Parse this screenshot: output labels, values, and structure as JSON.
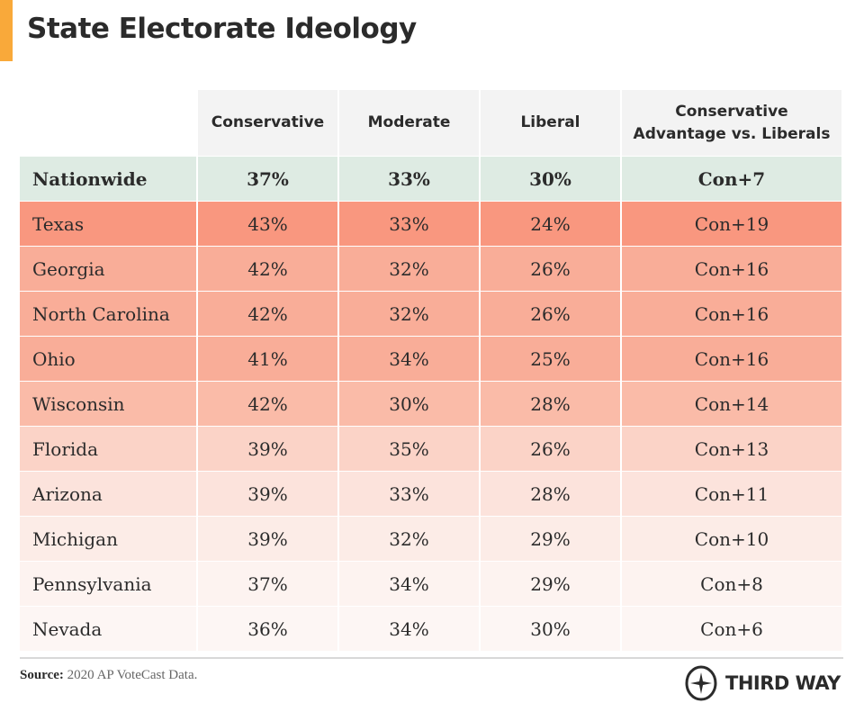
{
  "title": "State Electorate Ideology",
  "colors": {
    "accent": "#f9a93a",
    "nationwide_row": "#deebe3",
    "header": "#f3f3f3"
  },
  "chart_data": {
    "type": "table",
    "columns": [
      "",
      "Conservative",
      "Moderate",
      "Liberal",
      "Conservative Advantage vs. Liberals"
    ],
    "rows": [
      {
        "label": "Nationwide",
        "conservative": "37%",
        "moderate": "33%",
        "liberal": "30%",
        "advantage": "Con+7",
        "color": "#deebe3"
      },
      {
        "label": "Texas",
        "conservative": "43%",
        "moderate": "33%",
        "liberal": "24%",
        "advantage": "Con+19",
        "color": "#f9977f"
      },
      {
        "label": "Georgia",
        "conservative": "42%",
        "moderate": "32%",
        "liberal": "26%",
        "advantage": "Con+16",
        "color": "#f9ad98"
      },
      {
        "label": "North Carolina",
        "conservative": "42%",
        "moderate": "32%",
        "liberal": "26%",
        "advantage": "Con+16",
        "color": "#f9ad98"
      },
      {
        "label": "Ohio",
        "conservative": "41%",
        "moderate": "34%",
        "liberal": "25%",
        "advantage": "Con+16",
        "color": "#f9ad98"
      },
      {
        "label": "Wisconsin",
        "conservative": "42%",
        "moderate": "30%",
        "liberal": "28%",
        "advantage": "Con+14",
        "color": "#fabba8"
      },
      {
        "label": "Florida",
        "conservative": "39%",
        "moderate": "35%",
        "liberal": "26%",
        "advantage": "Con+13",
        "color": "#fbd3c7"
      },
      {
        "label": "Arizona",
        "conservative": "39%",
        "moderate": "33%",
        "liberal": "28%",
        "advantage": "Con+11",
        "color": "#fce3dc"
      },
      {
        "label": "Michigan",
        "conservative": "39%",
        "moderate": "32%",
        "liberal": "29%",
        "advantage": "Con+10",
        "color": "#fcece7"
      },
      {
        "label": "Pennsylvania",
        "conservative": "37%",
        "moderate": "34%",
        "liberal": "29%",
        "advantage": "Con+8",
        "color": "#fdf3f0"
      },
      {
        "label": "Nevada",
        "conservative": "36%",
        "moderate": "34%",
        "liberal": "30%",
        "advantage": "Con+6",
        "color": "#fdf6f4"
      }
    ]
  },
  "header": {
    "conservative": "Conservative",
    "moderate": "Moderate",
    "liberal": "Liberal",
    "advantage_line1": "Conservative",
    "advantage_line2": "Advantage vs. Liberals"
  },
  "source": {
    "label": "Source:",
    "text": " 2020 AP VoteCast Data."
  },
  "logo": {
    "text": "THIRD WAY",
    "icon": "compass-star-icon"
  }
}
